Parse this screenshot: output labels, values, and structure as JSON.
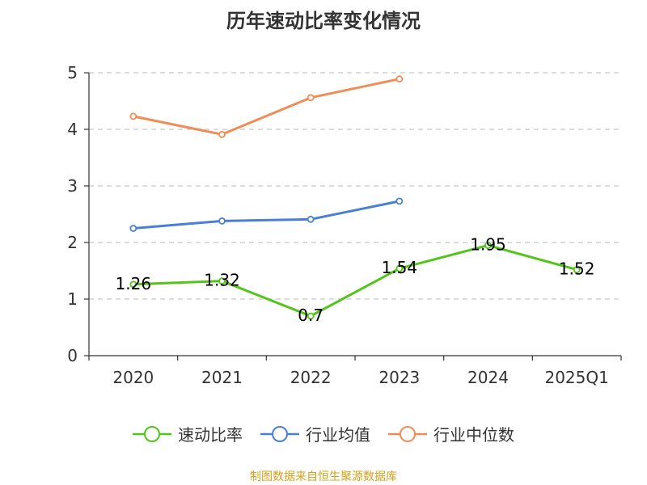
{
  "chart_data": {
    "type": "line",
    "title": "历年速动比率变化情况",
    "categories": [
      "2020",
      "2021",
      "2022",
      "2023",
      "2024",
      "2025Q1"
    ],
    "ylim": [
      0,
      5
    ],
    "yticks": [
      "0",
      "1",
      "2",
      "3",
      "4",
      "5"
    ],
    "grid": true,
    "legend": "bottom",
    "series": [
      {
        "name": "速动比率",
        "color": "#52c41a",
        "values": [
          1.26,
          1.32,
          0.7,
          1.54,
          1.95,
          1.52
        ],
        "labels": [
          "1.26",
          "1.32",
          "0.7",
          "1.54",
          "1.95",
          "1.52"
        ]
      },
      {
        "name": "行业均值",
        "color": "#4a7fd6",
        "values": [
          2.25,
          2.38,
          2.41,
          2.73,
          null,
          null
        ]
      },
      {
        "name": "行业中位数",
        "color": "#f28c56",
        "values": [
          4.23,
          3.91,
          4.56,
          4.89,
          null,
          null
        ]
      }
    ]
  },
  "footer": {
    "source": "制图数据来自恒生聚源数据库"
  }
}
